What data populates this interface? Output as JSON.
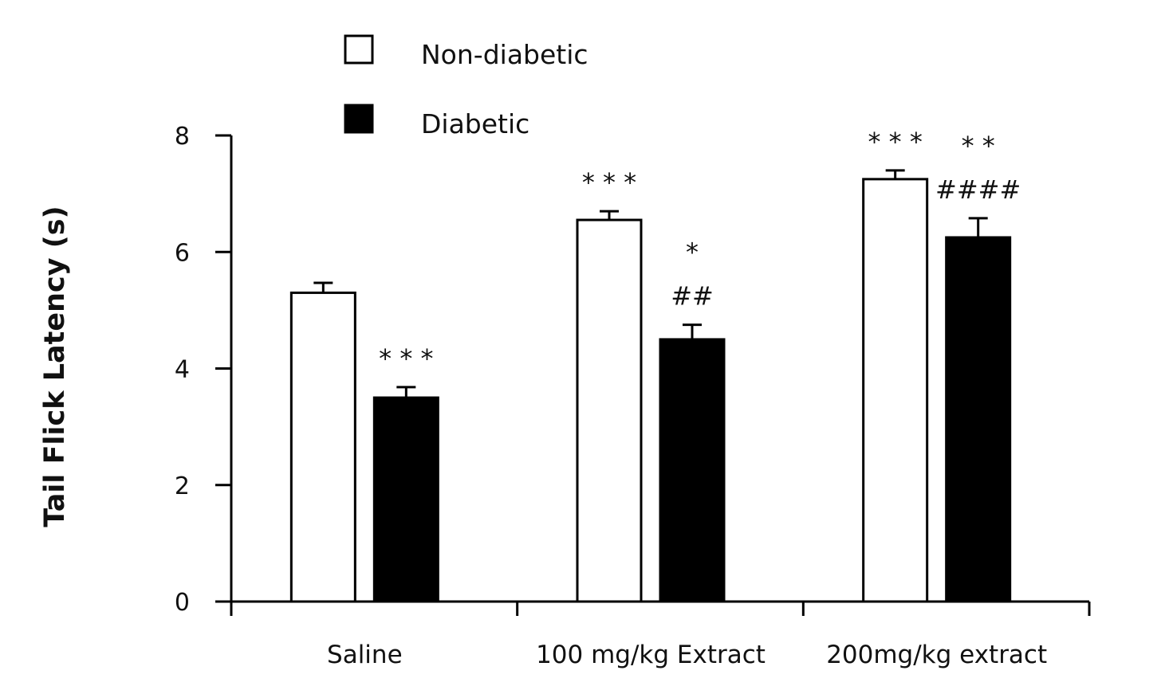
{
  "chart_data": {
    "type": "bar",
    "title": "",
    "xlabel": "",
    "ylabel": "Tail Flick Latency (s)",
    "ylim": [
      0,
      8
    ],
    "yticks": [
      0,
      2,
      4,
      6,
      8
    ],
    "categories": [
      "Saline",
      "100 mg/kg Extract",
      "200mg/kg extract"
    ],
    "series": [
      {
        "name": "Non-diabetic",
        "values": [
          5.3,
          6.55,
          7.25
        ],
        "errors": [
          0.17,
          0.15,
          0.15
        ],
        "color": "#ffffff",
        "annotations": [
          "",
          "* * *",
          "* * *"
        ]
      },
      {
        "name": "Diabetic",
        "values": [
          3.5,
          4.5,
          6.25
        ],
        "errors": [
          0.18,
          0.25,
          0.33
        ],
        "color": "#000000",
        "annotations": [
          "* * *",
          "*\n##",
          "* *\n####"
        ]
      }
    ],
    "legend_position": "top-left",
    "grid": false
  }
}
